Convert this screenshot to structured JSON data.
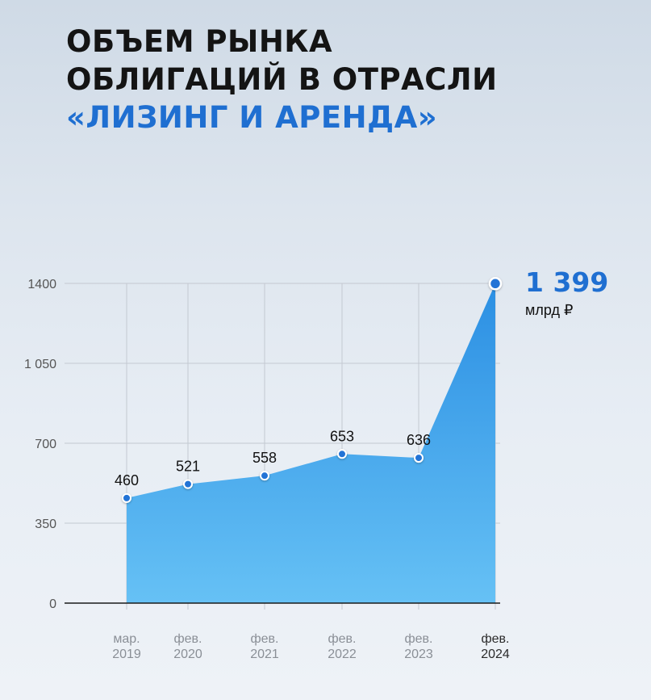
{
  "header": {
    "title_line1": "ОБЪЕМ РЫНКА",
    "title_line2": "ОБЛИГАЦИЙ В ОТРАСЛИ",
    "title_line3": "«ЛИЗИНГ И АРЕНДА»"
  },
  "callout": {
    "value": "1 399",
    "unit": "млрд ₽"
  },
  "colors": {
    "accent": "#1f6fd1",
    "area_top": "#2b8fe3",
    "area_bottom": "#66c1f5",
    "point_fill": "#2273d6"
  },
  "chart_data": {
    "type": "area",
    "x": [
      [
        "мар.",
        "2019"
      ],
      [
        "фев.",
        "2020"
      ],
      [
        "фев.",
        "2021"
      ],
      [
        "фев.",
        "2022"
      ],
      [
        "фев.",
        "2023"
      ],
      [
        "фев.",
        "2024"
      ]
    ],
    "values": [
      460,
      521,
      558,
      653,
      636,
      1399
    ],
    "data_labels": [
      "460",
      "521",
      "558",
      "653",
      "636",
      ""
    ],
    "yticks": [
      0,
      350,
      700,
      1050,
      1400
    ],
    "ytick_labels": [
      "0",
      "350",
      "700",
      "1 050",
      "1400"
    ],
    "ylim": [
      0,
      1400
    ],
    "grid": true
  }
}
